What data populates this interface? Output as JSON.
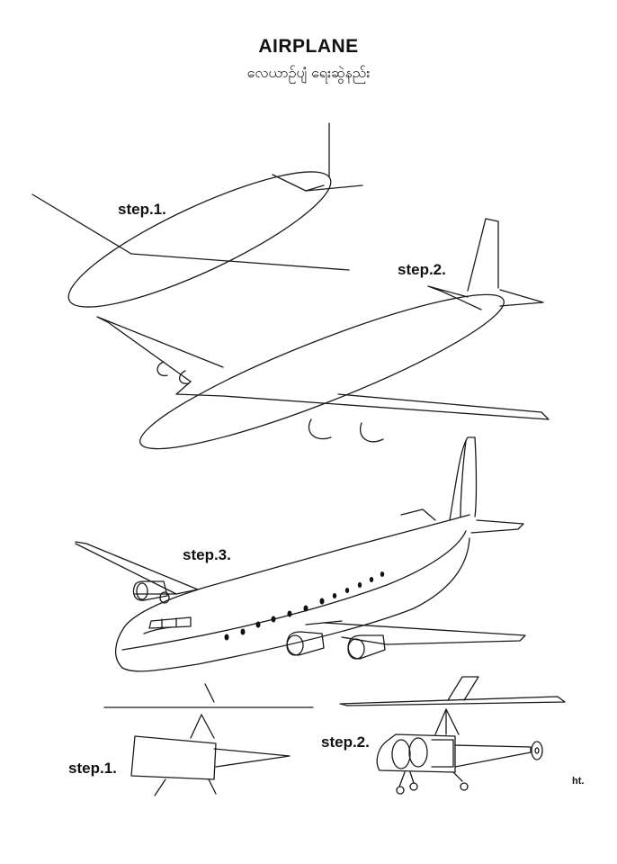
{
  "header": {
    "title": "AIRPLANE",
    "subtitle": "လေယာဉ်ပျံ ရေးဆွဲနည်း"
  },
  "airplane_steps": {
    "step1": "step.1.",
    "step2": "step.2.",
    "step3": "step.3."
  },
  "helicopter_steps": {
    "step1": "step.1.",
    "step2": "step.2."
  },
  "credit": "ht."
}
